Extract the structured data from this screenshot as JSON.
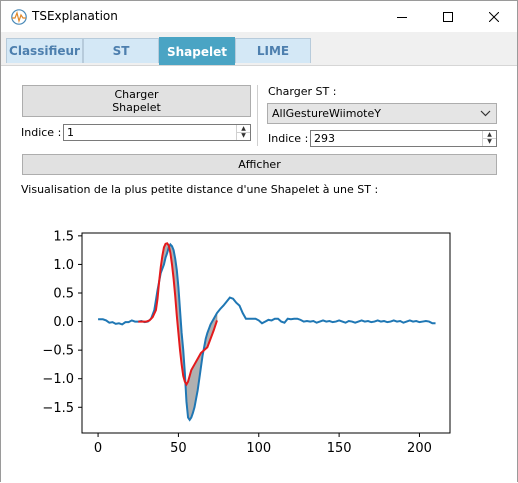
{
  "window": {
    "title": "TSExplanation",
    "controls": {
      "minimize": "—",
      "maximize": "☐",
      "close": "✕"
    }
  },
  "tabs": [
    {
      "label": "Classifieur",
      "active": false
    },
    {
      "label": "ST",
      "active": false
    },
    {
      "label": "Shapelet",
      "active": true
    },
    {
      "label": "LIME",
      "active": false
    }
  ],
  "left_panel": {
    "load_button": "Charger\nShapelet",
    "index_label": "Indice :",
    "index_value": "1"
  },
  "right_panel": {
    "load_label": "Charger ST :",
    "dataset_selected": "AllGestureWiimoteY",
    "index_label": "Indice :",
    "index_value": "293"
  },
  "show_button": "Afficher",
  "caption": "Visualisation de la plus petite distance d'une Shapelet à une ST :",
  "colors": {
    "series": "#1f77b4",
    "shapelet": "#e41a1c",
    "fill": "#b0b0b0",
    "active_tab": "#4aa4c4",
    "tab": "#d4e8f6"
  },
  "chart_data": {
    "type": "line",
    "title": "",
    "xlabel": "",
    "ylabel": "",
    "xlim": [
      -10,
      219
    ],
    "ylim": [
      -1.95,
      1.55
    ],
    "xticks": [
      0,
      50,
      100,
      150,
      200
    ],
    "yticks": [
      1.5,
      1.0,
      0.5,
      0.0,
      -0.5,
      -1.0,
      -1.5
    ],
    "ytick_labels": [
      "1.5",
      "1.0",
      "0.5",
      "0.0",
      "−0.5",
      "−1.0",
      "−1.5"
    ],
    "grid": false,
    "legend": "none",
    "series": [
      {
        "role": "time-series",
        "x": [
          0,
          3,
          5,
          7,
          9,
          11,
          13,
          15,
          17,
          19,
          21,
          23,
          25,
          27,
          29,
          31,
          33,
          35,
          37,
          39,
          41,
          42,
          43,
          44,
          45,
          46,
          47,
          48,
          49,
          50,
          51,
          52,
          53,
          54,
          55,
          56,
          57,
          58,
          59,
          60,
          61,
          62,
          63,
          64,
          65,
          66,
          67,
          68,
          70,
          72,
          74,
          76,
          78,
          80,
          82,
          84,
          86,
          88,
          90,
          92,
          94,
          96,
          98,
          100,
          102,
          104,
          106,
          108,
          110,
          112,
          114,
          116,
          118,
          120,
          122,
          124,
          126,
          128,
          130,
          132,
          134,
          136,
          138,
          140,
          142,
          144,
          146,
          148,
          150,
          152,
          154,
          156,
          158,
          160,
          162,
          164,
          166,
          168,
          170,
          172,
          174,
          176,
          178,
          180,
          182,
          184,
          186,
          188,
          190,
          192,
          194,
          196,
          198,
          200,
          202,
          204,
          206,
          208,
          210
        ],
        "y": [
          0.04,
          0.04,
          0.02,
          -0.02,
          -0.01,
          -0.04,
          -0.03,
          -0.05,
          -0.01,
          -0.01,
          0.02,
          0.0,
          0.0,
          0.01,
          -0.01,
          0.0,
          0.05,
          0.2,
          0.55,
          0.85,
          1.0,
          1.12,
          1.2,
          1.3,
          1.35,
          1.32,
          1.25,
          1.1,
          0.9,
          0.6,
          0.2,
          -0.2,
          -0.5,
          -0.9,
          -1.4,
          -1.68,
          -1.72,
          -1.68,
          -1.6,
          -1.5,
          -1.35,
          -1.2,
          -1.0,
          -0.8,
          -0.6,
          -0.45,
          -0.3,
          -0.2,
          -0.05,
          0.05,
          0.15,
          0.22,
          0.28,
          0.35,
          0.42,
          0.4,
          0.33,
          0.28,
          0.15,
          0.05,
          0.05,
          0.05,
          0.05,
          0.02,
          -0.03,
          0.0,
          0.03,
          0.02,
          0.05,
          0.05,
          0.0,
          -0.02,
          0.05,
          0.04,
          0.05,
          0.05,
          0.03,
          0.0,
          0.01,
          0.0,
          0.01,
          -0.02,
          0.0,
          0.02,
          0.0,
          0.01,
          -0.01,
          0.0,
          0.02,
          0.0,
          -0.02,
          0.01,
          0.0,
          -0.02,
          0.0,
          0.02,
          0.0,
          0.01,
          -0.01,
          0.0,
          0.02,
          0.0,
          0.01,
          -0.01,
          0.0,
          0.02,
          0.0,
          0.01,
          -0.02,
          0.0,
          0.02,
          0.0,
          0.01,
          -0.01,
          0.0,
          0.01,
          0.0,
          -0.03,
          -0.03
        ]
      },
      {
        "role": "shapelet",
        "x": [
          25,
          27,
          30,
          32,
          34,
          36,
          37,
          38,
          39,
          40,
          41,
          42,
          43,
          44,
          45,
          46,
          47,
          48,
          49,
          50,
          51,
          52,
          53,
          54,
          55,
          56,
          57,
          58,
          60,
          62,
          64,
          66,
          68,
          70,
          72,
          74
        ],
        "y": [
          0.0,
          0.0,
          0.0,
          0.02,
          0.08,
          0.2,
          0.4,
          0.7,
          0.95,
          1.15,
          1.3,
          1.36,
          1.37,
          1.33,
          1.2,
          1.0,
          0.75,
          0.45,
          0.1,
          -0.2,
          -0.5,
          -0.75,
          -0.95,
          -1.05,
          -1.1,
          -1.05,
          -0.95,
          -0.85,
          -0.75,
          -0.65,
          -0.55,
          -0.5,
          -0.45,
          -0.3,
          -0.15,
          0.02
        ]
      }
    ]
  }
}
